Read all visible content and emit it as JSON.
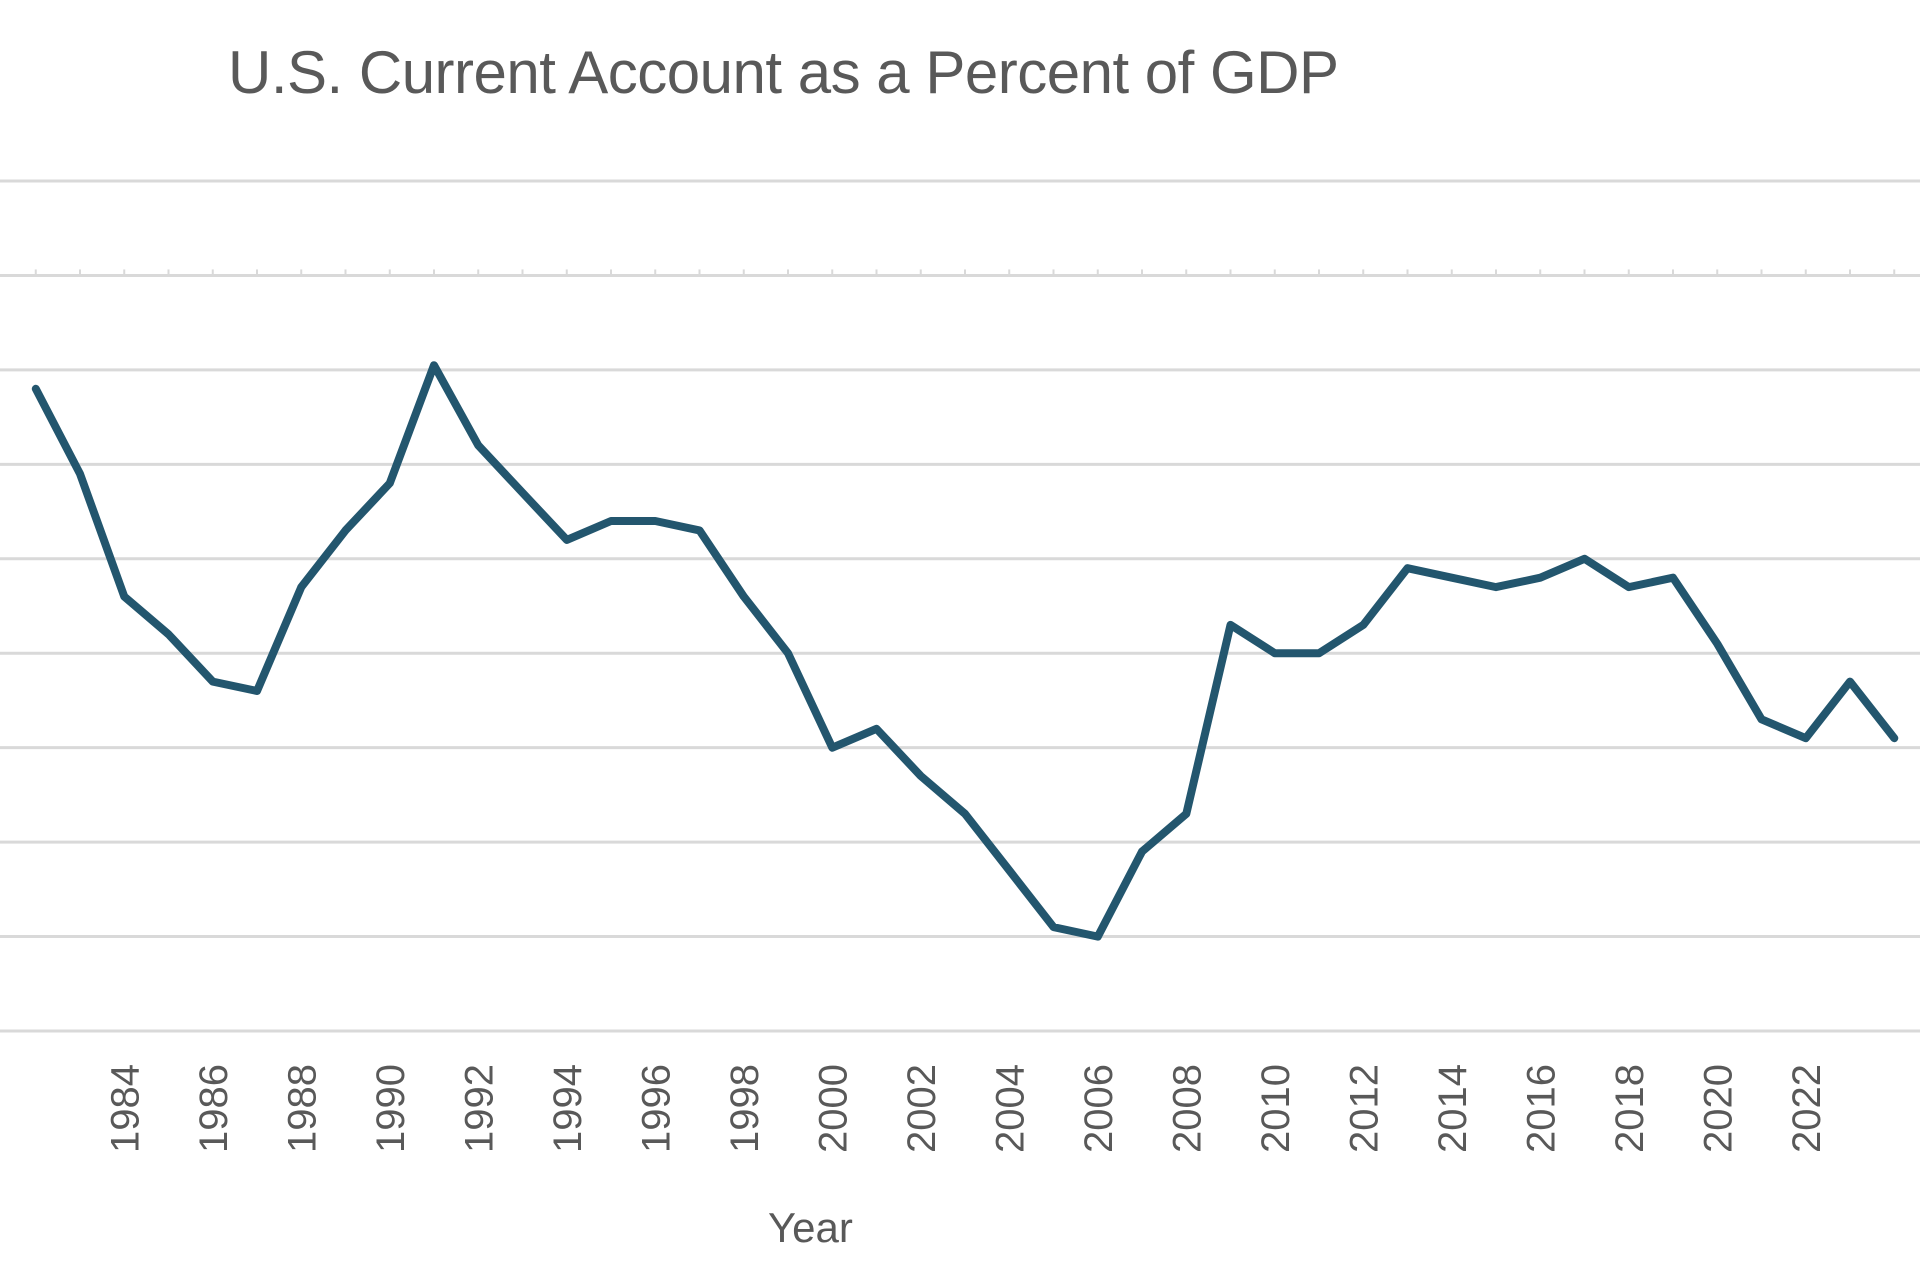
{
  "chart_data": {
    "type": "line",
    "title": "U.S. Current Account as a Percent of GDP",
    "xlabel": "Year",
    "ylabel": "",
    "series_color": "#23566e",
    "grid_color": "#d9d9d9",
    "ylim": [
      -7,
      2
    ],
    "grid_values": [
      -7,
      -6,
      -5,
      -4,
      -3,
      -2,
      -1,
      0,
      1,
      2
    ],
    "x_tick_labels": [
      "1984",
      "1986",
      "1988",
      "1990",
      "1992",
      "1994",
      "1996",
      "1998",
      "2000",
      "2002",
      "2004",
      "2006",
      "2008",
      "2010",
      "2012",
      "2014",
      "2016",
      "2018",
      "2020",
      "2022"
    ],
    "series": [
      {
        "name": "U.S. Current Account (% of GDP)",
        "x": [
          1982,
          1983,
          1984,
          1985,
          1986,
          1987,
          1988,
          1989,
          1990,
          1991,
          1992,
          1993,
          1994,
          1995,
          1996,
          1997,
          1998,
          1999,
          2000,
          2001,
          2002,
          2003,
          2004,
          2005,
          2006,
          2007,
          2008,
          2009,
          2010,
          2011,
          2012,
          2013,
          2014,
          2015,
          2016,
          2017,
          2018,
          2019,
          2020,
          2021,
          2022,
          2023,
          2024
        ],
        "values": [
          -0.2,
          -1.1,
          -2.4,
          -2.8,
          -3.3,
          -3.4,
          -2.3,
          -1.7,
          -1.2,
          0.05,
          -0.8,
          -1.3,
          -1.8,
          -1.6,
          -1.6,
          -1.7,
          -2.4,
          -3.0,
          -4.0,
          -3.8,
          -4.3,
          -4.7,
          -5.3,
          -5.9,
          -6.0,
          -5.1,
          -4.7,
          -2.7,
          -3.0,
          -3.0,
          -2.7,
          -2.1,
          -2.2,
          -2.3,
          -2.2,
          -2.0,
          -2.3,
          -2.2,
          -2.9,
          -3.7,
          -3.9,
          -3.3,
          -3.9
        ]
      }
    ]
  }
}
